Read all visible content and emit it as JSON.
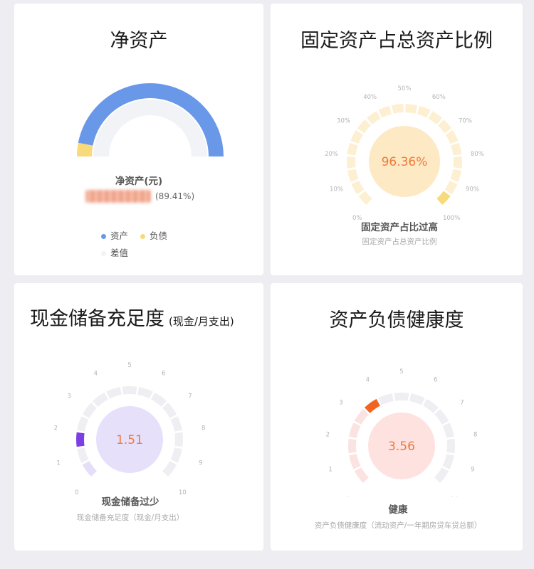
{
  "colors": {
    "asset_blue": "#6a98e8",
    "liability_yellow": "#f8da7a",
    "diff_gray": "#f2f3f7",
    "orange_text": "#f07a3e",
    "purple": "#7b3fe4",
    "deep_orange": "#f26422"
  },
  "net_assets": {
    "title": "净资产",
    "label": "净资产(元)",
    "percent": "(89.41%)",
    "chart_data": {
      "type": "pie",
      "series": [
        {
          "name": "资产",
          "share": 0.95
        },
        {
          "name": "负债",
          "share": 0.05
        },
        {
          "name": "差值",
          "share": 1.0
        }
      ]
    },
    "legend": [
      {
        "label": "资产",
        "color": "#6a98e8"
      },
      {
        "label": "负债",
        "color": "#f8da7a"
      },
      {
        "label": "差值",
        "color": "#f2f3f7"
      }
    ]
  },
  "fixed_ratio": {
    "title": "固定资产占总资产比例",
    "value": "96.36%",
    "label": "固定资产占比过高",
    "sub": "固定资产占总资产比例",
    "ticks": [
      "0%",
      "10%",
      "20%",
      "30%",
      "40%",
      "50%",
      "60%",
      "70%",
      "80%",
      "90%",
      "100%"
    ],
    "level": 0.9636
  },
  "cash_reserve": {
    "title": "现金储备充足度",
    "title_suffix": "(现金/月支出)",
    "value": "1.51",
    "label": "现金储备过少",
    "sub": "现金储备充足度（现金/月支出）",
    "ticks": [
      "0",
      "1",
      "2",
      "3",
      "4",
      "5",
      "6",
      "7",
      "8",
      "9",
      "10"
    ],
    "level": 0.151
  },
  "health": {
    "title": "资产负债健康度",
    "value": "3.56",
    "label": "健康",
    "sub": "资产负债健康度（流动资产/一年期房贷车贷总额）",
    "ticks": [
      "0",
      "1",
      "2",
      "3",
      "4",
      "5",
      "6",
      "7",
      "8",
      "9",
      "10"
    ],
    "level": 0.356
  }
}
